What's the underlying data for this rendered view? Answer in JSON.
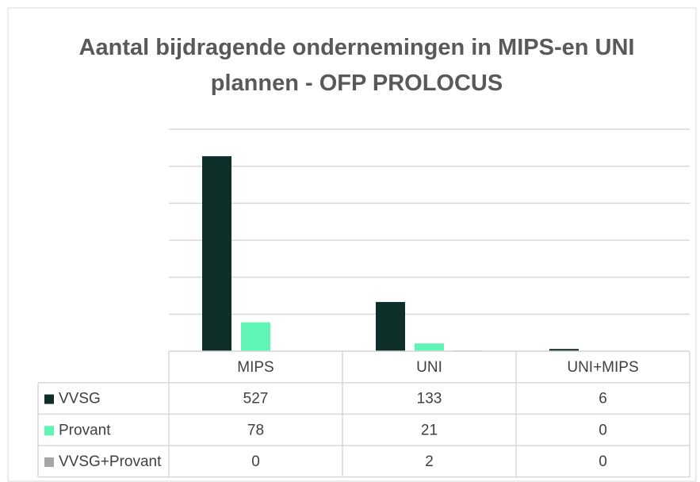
{
  "chart_data": {
    "type": "bar",
    "title": "Aantal bijdragende ondernemingen in MIPS-en UNI plannen - OFP PROLOCUS",
    "categories": [
      "MIPS",
      "UNI",
      "UNI+MIPS"
    ],
    "series": [
      {
        "name": "VVSG",
        "color": "#0e2e29",
        "values": [
          527,
          133,
          6
        ]
      },
      {
        "name": "Provant",
        "color": "#5ef5b5",
        "values": [
          78,
          21,
          0
        ]
      },
      {
        "name": "VVSG+Provant",
        "color": "#a6a6a6",
        "values": [
          0,
          2,
          0
        ]
      }
    ],
    "ylim": [
      0,
      600
    ],
    "yticks": [
      0,
      100,
      200,
      300,
      400,
      500,
      600
    ],
    "grid": true,
    "data_table": true
  }
}
